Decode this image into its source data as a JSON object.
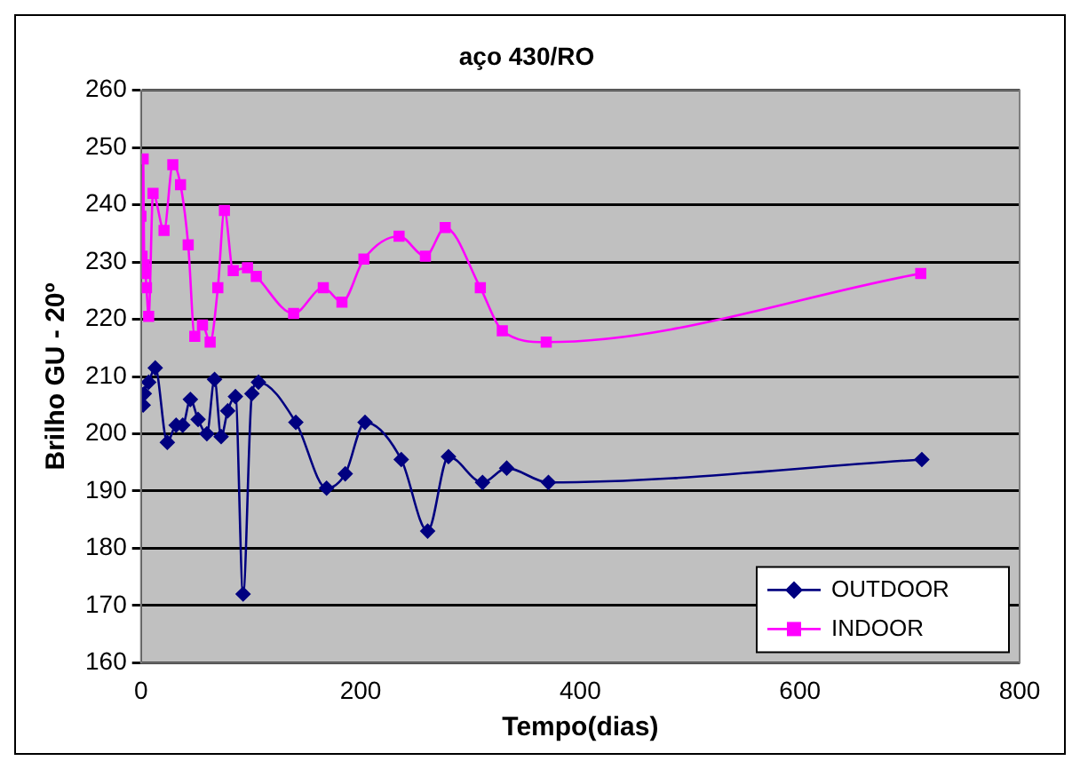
{
  "chart_data": {
    "type": "line",
    "title": "aço 430/RO",
    "xlabel": "Tempo(dias)",
    "ylabel": "Brilho GU - 20º",
    "xlim": [
      0,
      800
    ],
    "xticks": [
      0,
      200,
      400,
      600,
      800
    ],
    "ylim": [
      160,
      260
    ],
    "yticks": [
      160,
      170,
      180,
      190,
      200,
      210,
      220,
      230,
      240,
      250,
      260
    ],
    "grid": "y",
    "legend": "bottom right",
    "series": [
      {
        "name": "OUTDOOR",
        "color": "#000080",
        "marker": "diamond",
        "x": [
          0,
          2,
          3,
          7,
          13,
          24,
          32,
          38,
          45,
          52,
          60,
          67,
          73,
          79,
          86,
          93,
          101,
          107,
          141,
          169,
          186,
          204,
          237,
          261,
          280,
          311,
          333,
          371,
          711
        ],
        "values": [
          207,
          205,
          207,
          209,
          211.5,
          198.5,
          201.5,
          201.5,
          206,
          202.5,
          200,
          209.5,
          199.5,
          204,
          206.5,
          172,
          207,
          209,
          202,
          190.5,
          193,
          202,
          195.5,
          183,
          196,
          191.5,
          194,
          191.5,
          195.5
        ]
      },
      {
        "name": "INDOOR",
        "color": "#ff00ff",
        "marker": "square",
        "x": [
          0,
          1,
          2,
          3,
          4,
          5,
          7,
          11,
          21,
          29,
          36,
          43,
          49,
          56,
          63,
          70,
          76,
          84,
          97,
          105,
          139,
          166,
          183,
          203,
          235,
          259,
          277,
          309,
          329,
          369,
          710
        ],
        "values": [
          238,
          231,
          248,
          229.5,
          228,
          225.5,
          220.5,
          242,
          235.5,
          247,
          243.5,
          233,
          217,
          219,
          216,
          225.5,
          239,
          228.5,
          229,
          227.5,
          221,
          225.5,
          223,
          230.5,
          234.5,
          231,
          236,
          225.5,
          218,
          216,
          228
        ]
      }
    ]
  }
}
